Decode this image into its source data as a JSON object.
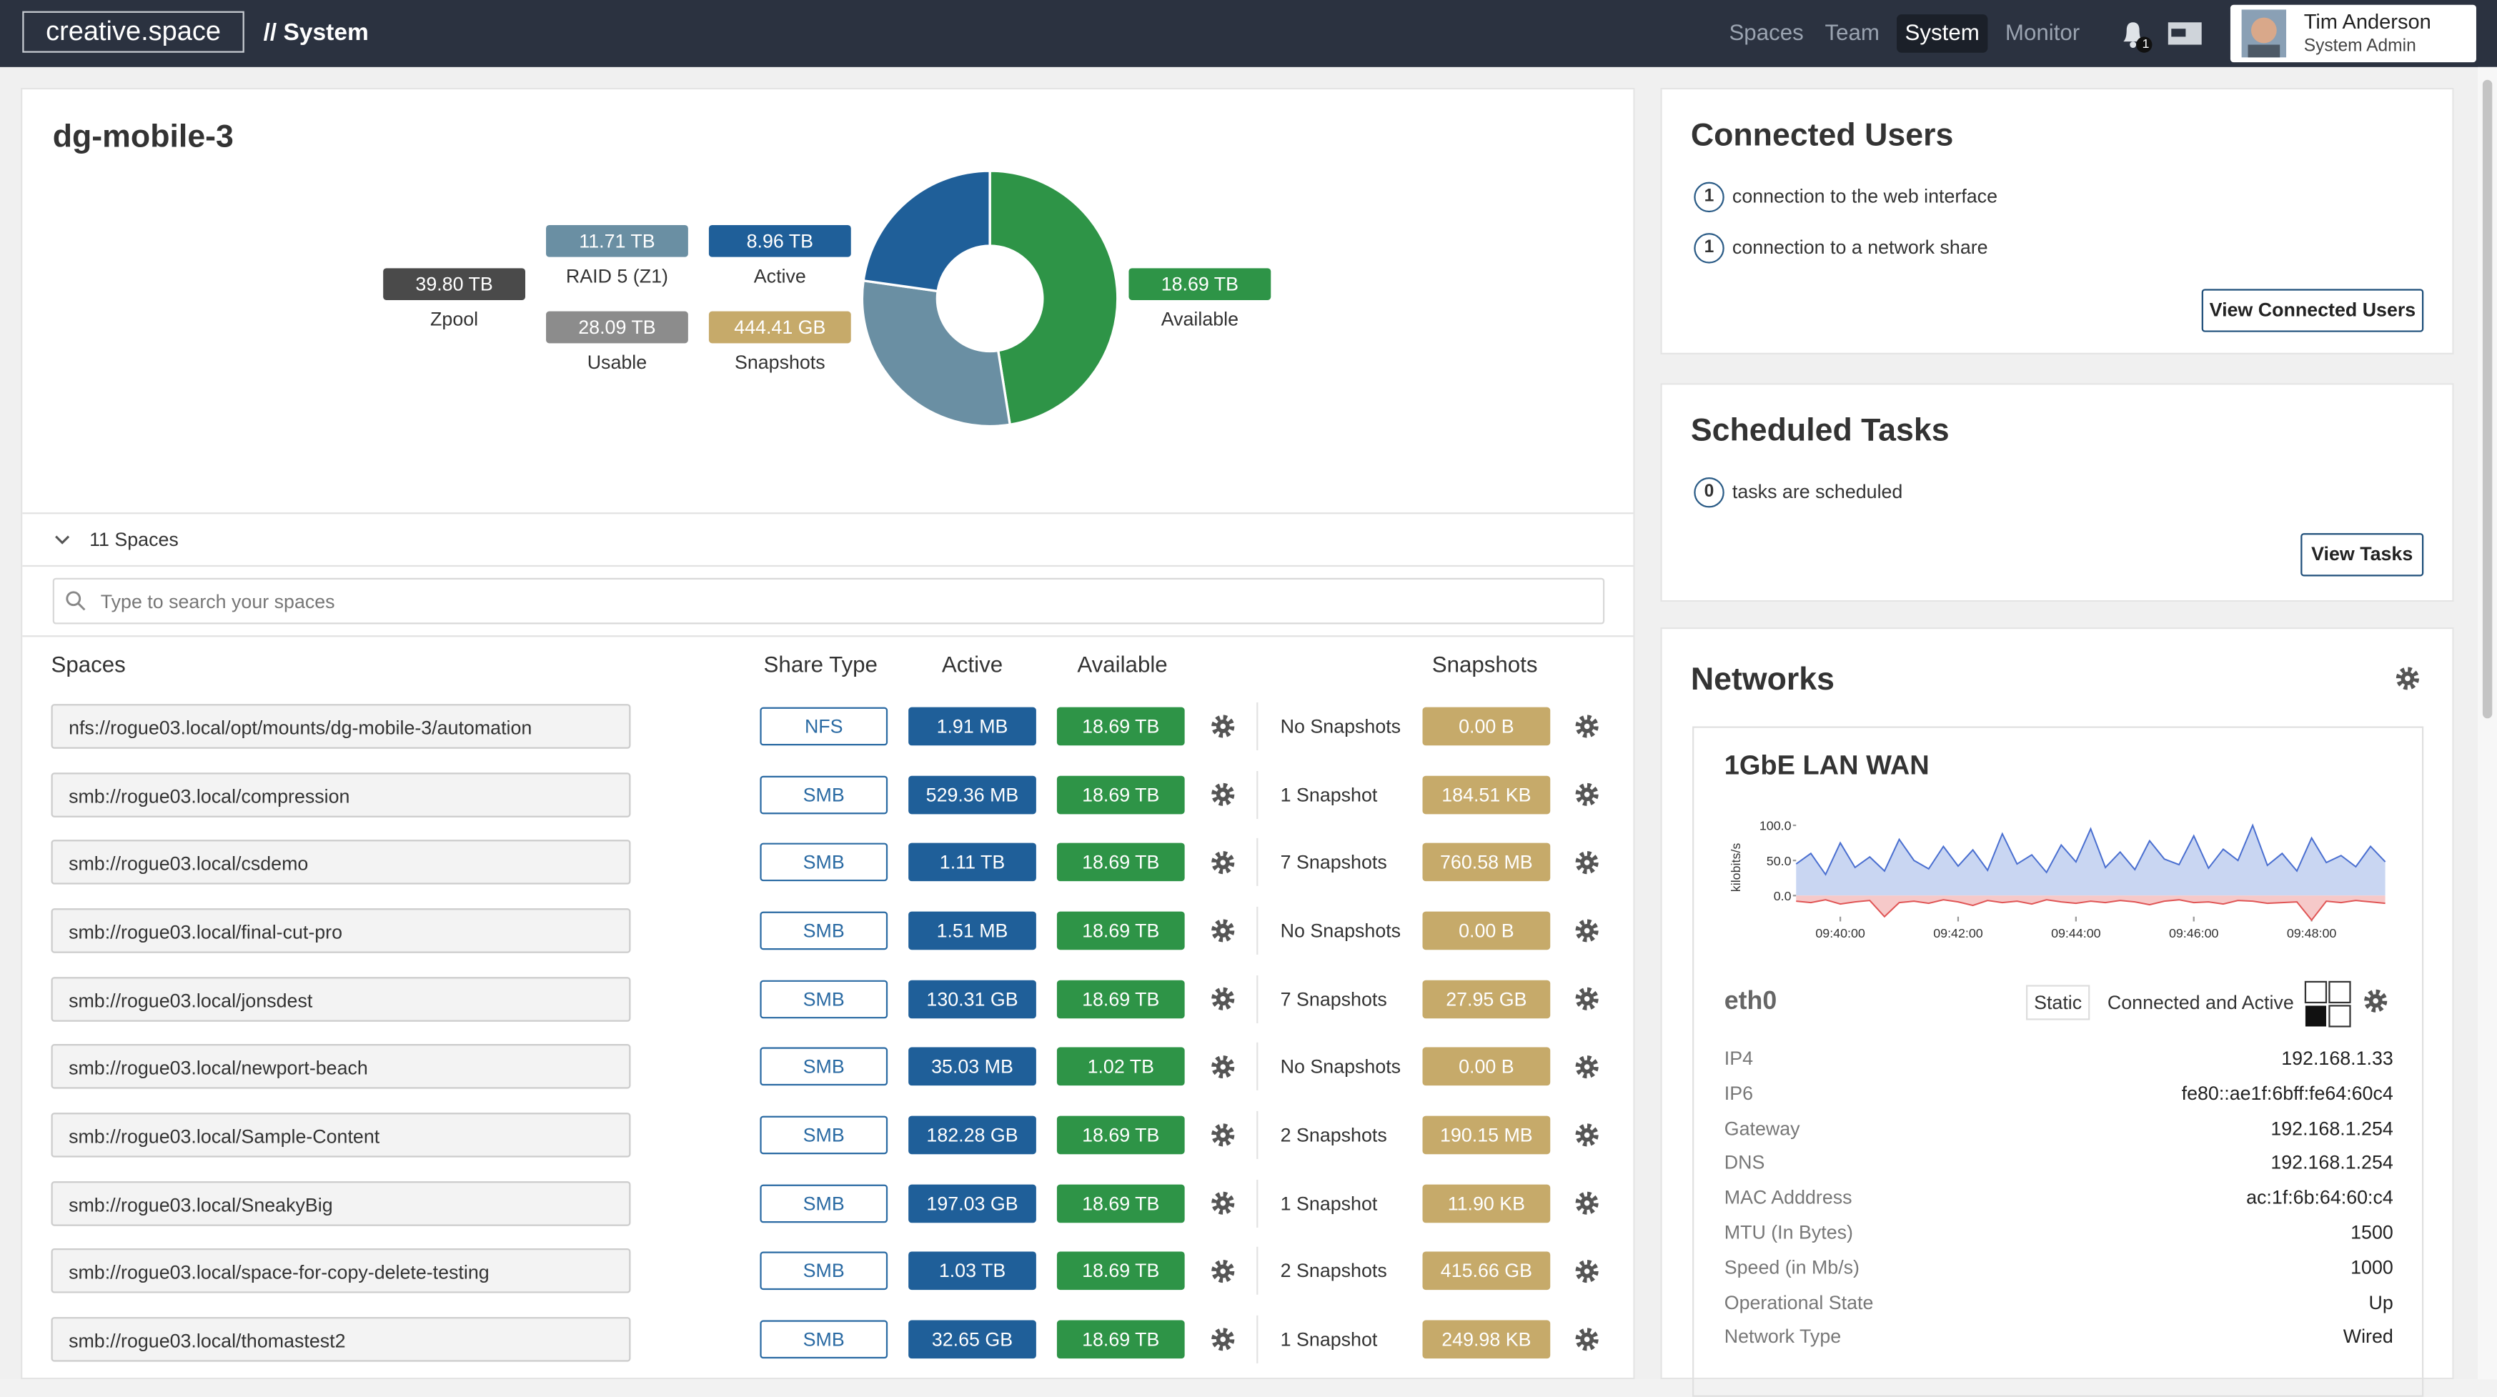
{
  "header": {
    "logo": "creative.space",
    "section": "// System",
    "nav": [
      "Spaces",
      "Team",
      "System",
      "Monitor"
    ],
    "notifications": "1",
    "user": {
      "name": "Tim Anderson",
      "role": "System Admin"
    }
  },
  "pool": {
    "name": "dg-mobile-3",
    "stats": [
      {
        "label": "Zpool",
        "value": "39.80 TB",
        "color": "#4a4a4a"
      },
      {
        "label": "RAID 5 (Z1)",
        "value": "11.71 TB",
        "color": "#6a8fa3"
      },
      {
        "label": "Usable",
        "value": "28.09 TB",
        "color": "#8c8c8c"
      },
      {
        "label": "Active",
        "value": "8.96 TB",
        "color": "#1f5f99"
      },
      {
        "label": "Snapshots",
        "value": "444.41 GB",
        "color": "#c6aa6a"
      },
      {
        "label": "Available",
        "value": "18.69 TB",
        "color": "#2e9447"
      }
    ],
    "donut": {
      "type": "pie",
      "values": [
        18.69,
        11.71,
        8.96
      ],
      "colors": [
        "#2e9447",
        "#6a8fa3",
        "#1f5f99"
      ]
    },
    "spaces_count": "11 Spaces",
    "search_placeholder": "Type to search your spaces",
    "columns": [
      "Spaces",
      "Share Type",
      "Active",
      "Available",
      "Snapshots"
    ],
    "rows": [
      [
        "nfs://rogue03.local/opt/mounts/dg-mobile-3/automation",
        "NFS",
        "1.91 MB",
        "18.69 TB",
        "No Snapshots",
        "0.00 B"
      ],
      [
        "smb://rogue03.local/compression",
        "SMB",
        "529.36 MB",
        "18.69 TB",
        "1 Snapshot",
        "184.51 KB"
      ],
      [
        "smb://rogue03.local/csdemo",
        "SMB",
        "1.11 TB",
        "18.69 TB",
        "7 Snapshots",
        "760.58 MB"
      ],
      [
        "smb://rogue03.local/final-cut-pro",
        "SMB",
        "1.51 MB",
        "18.69 TB",
        "No Snapshots",
        "0.00 B"
      ],
      [
        "smb://rogue03.local/jonsdest",
        "SMB",
        "130.31 GB",
        "18.69 TB",
        "7 Snapshots",
        "27.95 GB"
      ],
      [
        "smb://rogue03.local/newport-beach",
        "SMB",
        "35.03 MB",
        "1.02 TB",
        "No Snapshots",
        "0.00 B"
      ],
      [
        "smb://rogue03.local/Sample-Content",
        "SMB",
        "182.28 GB",
        "18.69 TB",
        "2 Snapshots",
        "190.15 MB"
      ],
      [
        "smb://rogue03.local/SneakyBig",
        "SMB",
        "197.03 GB",
        "18.69 TB",
        "1 Snapshot",
        "11.90 KB"
      ],
      [
        "smb://rogue03.local/space-for-copy-delete-testing",
        "SMB",
        "1.03 TB",
        "18.69 TB",
        "2 Snapshots",
        "415.66 GB"
      ],
      [
        "smb://rogue03.local/thomastest2",
        "SMB",
        "32.65 GB",
        "18.69 TB",
        "1 Snapshot",
        "249.98 KB"
      ]
    ]
  },
  "connected_users": {
    "title": "Connected Users",
    "items": [
      {
        "count": "1",
        "text": "connection to the web interface"
      },
      {
        "count": "1",
        "text": "connection to a network share"
      }
    ],
    "button": "View Connected Users"
  },
  "scheduled_tasks": {
    "title": "Scheduled Tasks",
    "items": [
      {
        "count": "0",
        "text": "tasks are scheduled"
      }
    ],
    "button": "View Tasks"
  },
  "networks": {
    "title": "Networks",
    "card_title": "1GbE LAN WAN",
    "chart": {
      "type": "area",
      "ylabel": "kilobits/s",
      "ylim": [
        -30,
        115
      ],
      "yticks": [
        {
          "value": 0,
          "label": "0.0"
        },
        {
          "value": 50,
          "label": "50.0"
        },
        {
          "value": 100,
          "label": "100.0"
        }
      ],
      "xlim": [
        -0.75,
        9.25
      ],
      "xticks": [
        {
          "value": 0,
          "label": "09:40:00"
        },
        {
          "value": 2,
          "label": "09:42:00"
        },
        {
          "value": 4,
          "label": "09:44:00"
        },
        {
          "value": 6,
          "label": "09:46:00"
        },
        {
          "value": 8,
          "label": "09:48:00"
        }
      ],
      "x": [
        -0.75,
        -0.5,
        -0.25,
        0,
        0.25,
        0.5,
        0.75,
        1,
        1.25,
        1.5,
        1.75,
        2,
        2.25,
        2.5,
        2.75,
        3,
        3.25,
        3.5,
        3.75,
        4,
        4.25,
        4.5,
        4.75,
        5,
        5.25,
        5.5,
        5.75,
        6,
        6.25,
        6.5,
        6.75,
        7,
        7.25,
        7.5,
        7.75,
        8,
        8.25,
        8.5,
        8.75,
        9,
        9.25
      ],
      "series": [
        {
          "color": "#4a6fd0",
          "fill": "#c9d6f2",
          "values": [
            45,
            60,
            30,
            75,
            40,
            55,
            35,
            80,
            50,
            38,
            70,
            42,
            65,
            36,
            88,
            45,
            58,
            33,
            72,
            48,
            95,
            40,
            62,
            37,
            78,
            52,
            44,
            85,
            39,
            66,
            50,
            100,
            43,
            60,
            35,
            82,
            47,
            57,
            41,
            70,
            48
          ]
        },
        {
          "color": "#e05555",
          "fill": "#f6c9c9",
          "values": [
            -8,
            -10,
            -6,
            -12,
            -9,
            -7,
            -30,
            -10,
            -8,
            -11,
            -6,
            -9,
            -14,
            -7,
            -10,
            -8,
            -12,
            -6,
            -9,
            -11,
            -8,
            -10,
            -7,
            -9,
            -13,
            -8,
            -6,
            -10,
            -9,
            -12,
            -7,
            -8,
            -11,
            -10,
            -9,
            -35,
            -8,
            -10,
            -7,
            -9,
            -11
          ]
        }
      ]
    },
    "interface": {
      "name": "eth0",
      "mode": "Static",
      "status": "Connected and Active",
      "details": [
        [
          "IP4",
          "192.168.1.33"
        ],
        [
          "IP6",
          "fe80::ae1f:6bff:fe64:60c4"
        ],
        [
          "Gateway",
          "192.168.1.254"
        ],
        [
          "DNS",
          "192.168.1.254"
        ],
        [
          "MAC Adddress",
          "ac:1f:6b:64:60:c4"
        ],
        [
          "MTU (In Bytes)",
          "1500"
        ],
        [
          "Speed (in Mb/s)",
          "1000"
        ],
        [
          "Operational State",
          "Up"
        ],
        [
          "Network Type",
          "Wired"
        ]
      ]
    }
  }
}
